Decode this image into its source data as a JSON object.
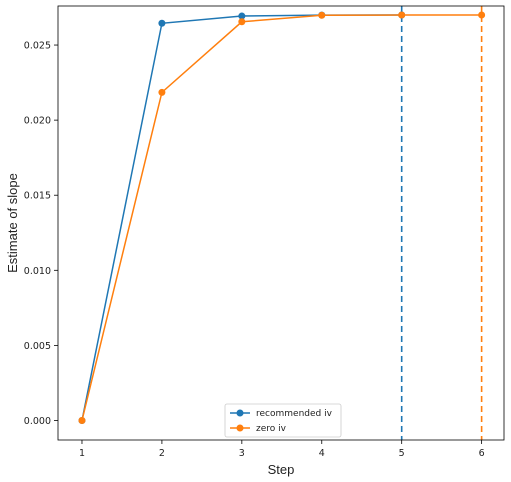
{
  "chart_data": {
    "type": "line",
    "title": "",
    "xlabel": "Step",
    "ylabel": "Estimate of slope",
    "x": [
      1,
      2,
      3,
      4,
      5,
      6
    ],
    "xlim": [
      0.7,
      6.28
    ],
    "ylim": [
      -0.0013,
      0.0276
    ],
    "xticks": [
      1,
      2,
      3,
      4,
      5,
      6
    ],
    "yticks": [
      0.0,
      0.005,
      0.01,
      0.015,
      0.02,
      0.025
    ],
    "ytick_labels": [
      "0.000",
      "0.005",
      "0.010",
      "0.015",
      "0.020",
      "0.025"
    ],
    "grid": false,
    "legend_position": "bottom-center",
    "series": [
      {
        "name": "recommended iv",
        "color": "#1f77b4",
        "marker": "circle",
        "x": [
          1,
          2,
          3,
          4,
          5
        ],
        "values": [
          0.0,
          0.02645,
          0.02693,
          0.02699,
          0.027
        ]
      },
      {
        "name": "zero iv",
        "color": "#ff7f0e",
        "marker": "circle",
        "x": [
          1,
          2,
          3,
          4,
          5,
          6
        ],
        "values": [
          0.0,
          0.02185,
          0.02655,
          0.02698,
          0.027,
          0.027
        ]
      }
    ],
    "vlines": [
      {
        "x": 5,
        "color": "#1f77b4",
        "style": "dashed"
      },
      {
        "x": 6,
        "color": "#ff7f0e",
        "style": "dashed"
      }
    ]
  }
}
